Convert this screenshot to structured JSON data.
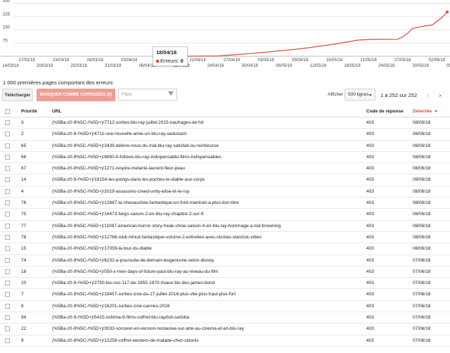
{
  "chart_data": {
    "type": "line",
    "title": "",
    "xlabel": "",
    "ylabel": "",
    "ylim": [
      0,
      300
    ],
    "y_ticks": [
      75,
      150,
      225,
      300
    ],
    "x_ticks_upper": [
      "17/03/18",
      "23/03/18",
      "28/03/18",
      "03/04/18",
      "09/04",
      "21/04/18",
      "27/04/18",
      "03/05/18",
      "09/05/18",
      "15/05/18",
      "21/05/18",
      "27/05/18",
      "02/06/18",
      "08/0"
    ],
    "x_ticks_lower": [
      "14/03/18",
      "20/03/18",
      "25/03/18",
      "31/03/18",
      "06/04/18",
      "18/04/18",
      "24/04/18",
      "30/04/18",
      "06/05/18",
      "12/05/18",
      "18/05/18",
      "24/05/18",
      "30/05/18",
      "05/06/18"
    ],
    "series": [
      {
        "color": "#dd4b39",
        "x": [
          "18/04/18",
          "25/04/18",
          "28/04/18",
          "01/05/18",
          "04/05/18",
          "07/05/18",
          "10/05/18",
          "13/05/18",
          "16/05/18",
          "19/05/18",
          "21/05/18",
          "23/05/18",
          "26/05/18",
          "29/05/18",
          "31/05/18",
          "01/06/18",
          "02/06/18",
          "03/06/18",
          "05/06/18",
          "07/06/18",
          "08/06/18",
          "09/06/18",
          "10/06/18"
        ],
        "values": [
          0,
          2,
          8,
          15,
          22,
          30,
          38,
          48,
          60,
          72,
          82,
          92,
          96,
          96,
          97,
          110,
          130,
          158,
          170,
          178,
          200,
          222,
          252
        ]
      }
    ]
  },
  "tooltip": {
    "date": "18/04/18",
    "label": "Erreurs:",
    "value": "0"
  },
  "section_title": "1 000 premières pages comportant des erreurs",
  "toolbar": {
    "download_label": "Télécharger",
    "mark_fixed_label": "MARQUER COMME CORRIGÉES (0)",
    "filter_placeholder": "Filtre",
    "show_label": "Afficher",
    "rows_value": "500 lignes",
    "range_text": "1 à 252 sur 252",
    "prev_glyph": "‹",
    "next_glyph": "›"
  },
  "table": {
    "headers": {
      "priority": "Priorité",
      "url": "URL",
      "code": "Code de réponse",
      "detected": "Détectée"
    },
    "rows": [
      {
        "priority": "3",
        "url": "(%5Ba-z0-9%5C-/%5D+)/7712-sorties-blu-ray-juillet-2015-naufrages-de-hd",
        "code": "403",
        "detected": "08/06/18"
      },
      {
        "priority": "2",
        "url": "(%5Ba-z0-9-/%5D+)/4711-une-nouvelle-amie-un-blu-ray-seduisant",
        "code": "403",
        "detected": "08/06/18"
      },
      {
        "priority": "65",
        "url": "(%5Ba-z0-9%5C-/%5D+)/3439-delivre-nous-du-mal-blu-ray-satisfait-ou-rembourse",
        "code": "403",
        "detected": "08/06/18"
      },
      {
        "priority": "66",
        "url": "(%5Ba-z0-9%5C-/%5D+)/8890-it-follows-blu-ray-indispensable-films-indispensables",
        "code": "403",
        "detected": "08/06/18"
      },
      {
        "priority": "67",
        "url": "(%5Ba-z0-9%5C-/%5D+)/1271-respire-melanie-laurent-fleur-peau",
        "code": "403",
        "detected": "08/06/18"
      },
      {
        "priority": "14",
        "url": "(%5Ba-z0-9-/%5D+)/18154-les-poings-dans-les-poches-le-diable-aux-corps",
        "code": "403",
        "detected": "08/06/18"
      },
      {
        "priority": "4",
        "url": "(%5Ba-z0-9%5C-/%5D+)/2019-assassins-creed-unity-elise-et-le-roy",
        "code": "403",
        "detected": "08/06/18"
      },
      {
        "priority": "76",
        "url": "(%5Ba-z0-9%5C-/%5D+)/12687-la-chevauchee-fantastique-un-ford-matriciel-a-plus-dun-titre",
        "code": "403",
        "detected": "08/06/18"
      },
      {
        "priority": "75",
        "url": "(%5Ba-z0-9%5C-/%5D+)/16473-fargo-saison-2-en-blu-ray-chapitre-2-sur-9",
        "code": "403",
        "detected": "08/06/18"
      },
      {
        "priority": "77",
        "url": "(%5Ba-z0-9%5C-/%5D+)/11087-american-horror-story-freak-show-saison-4-en-blu-ray-hommage-a-tod-browning",
        "code": "403",
        "detected": "08/06/18"
      },
      {
        "priority": "78",
        "url": "(%5Ba-z0-9%5C-/%5D+)/12768-midi-minuit-fantastique-volume-2-entretien-avec-nicolas-stanzick-video",
        "code": "403",
        "detected": "08/06/18"
      },
      {
        "priority": "15",
        "url": "(%5Ba-z0-9%5C-/%5D+)/17059-la-tour-du-diable",
        "code": "403",
        "detected": "08/06/18"
      },
      {
        "priority": "74",
        "url": "(%5Ba-z0-9%5C-/%5D+)/6232-a-poursuite-de-demain-leugenisme-selon-disney",
        "code": "403",
        "detected": "07/06/18"
      },
      {
        "priority": "18",
        "url": "(%5Ba-z0-9%5C-/%5D+)/550-x-men-days-of-future-past-blu-ray-au-niveau-du-film",
        "code": "403",
        "detected": "07/06/18"
      },
      {
        "priority": "20",
        "url": "(%5Ba-z0-9-/%5D+)/2750-les-oss-117-de-1955-1970-rivaux-bis-des-james-bond",
        "code": "403",
        "detected": "07/06/18"
      },
      {
        "priority": "7",
        "url": "(%5Ba-z0-9%5C-/%5D+)/18457-sorties-cine-du-27-juillet-2016-plus-vite-plus-haut-plus-fort",
        "code": "403",
        "detected": "07/06/18"
      },
      {
        "priority": "8",
        "url": "(%5Ba-z0-9%5C-/%5D+)/16201-sorties-cine-cannes-2016",
        "code": "403",
        "detected": "07/06/18"
      },
      {
        "priority": "94",
        "url": "(%5Ba-z0-9-/%5D+)/5415-oshima-9-films-coffret-blu-raydvd-carlotta",
        "code": "403",
        "detected": "07/06/18"
      },
      {
        "priority": "22",
        "url": "(%5Ba-z0-9%5C-/%5D+)/3033-sorcerer-en-version-restauree-sur-arte-au-cinema-et-en-blu-ray",
        "code": "403",
        "detected": "07/06/18"
      },
      {
        "priority": "9",
        "url": "(%5Ba-z0-9%5C-/%5D+)/12259-coffret-western-de-malade-chez-sidonis",
        "code": "403",
        "detected": "07/06/18"
      }
    ]
  },
  "colors": {
    "accent": "#dd4b39",
    "mark_button": "#ec9f95",
    "grid": "#e6e6e6"
  }
}
